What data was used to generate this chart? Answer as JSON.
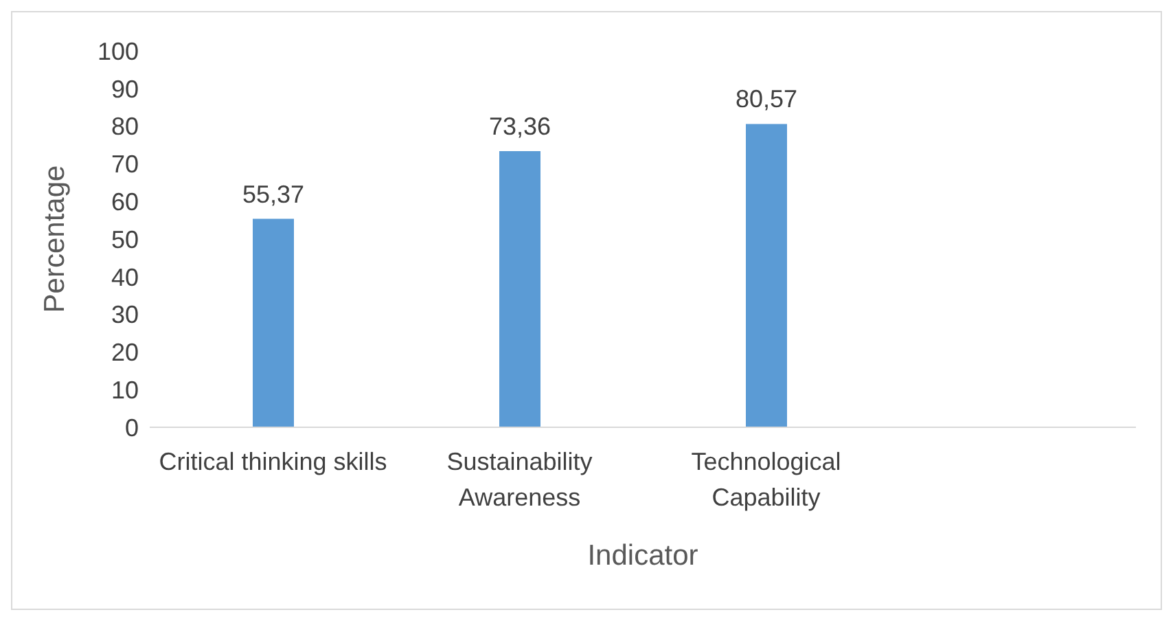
{
  "chart_data": {
    "type": "bar",
    "xlabel": "Indicator",
    "ylabel": "Percentage",
    "categories": [
      "Critical thinking skills",
      "Sustainability Awareness",
      "Technological Capability",
      null
    ],
    "values": [
      55.37,
      73.36,
      80.57,
      null
    ],
    "value_labels": [
      "55,37",
      "73,36",
      "80,57",
      null
    ],
    "color": "#5b9bd5",
    "ylim": [
      0,
      100
    ],
    "yticks": [
      0,
      10,
      20,
      30,
      40,
      50,
      60,
      70,
      80,
      90,
      100
    ],
    "grid": false,
    "legend": false
  }
}
